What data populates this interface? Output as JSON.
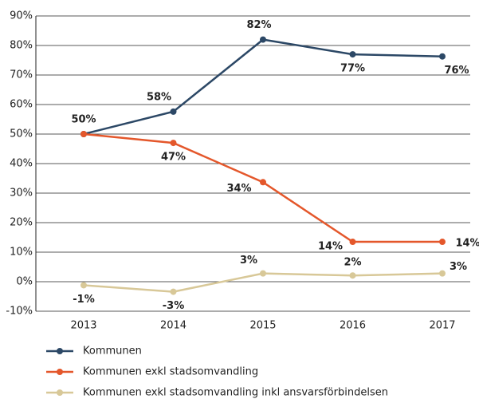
{
  "chart_data": {
    "type": "line",
    "categories": [
      "2013",
      "2014",
      "2015",
      "2016",
      "2017"
    ],
    "series": [
      {
        "name": "Kommunen",
        "color": "#2c4866",
        "values": [
          50,
          57.6,
          82,
          77,
          76.3
        ],
        "value_labels": [
          "50%",
          "58%",
          "82%",
          "77%",
          "76%"
        ]
      },
      {
        "name": "Kommunen exkl stadsomvandling",
        "color": "#e4572b",
        "values": [
          50,
          47,
          33.7,
          13.5,
          13.5
        ],
        "value_labels": [
          null,
          "47%",
          "34%",
          "14%",
          "14%"
        ]
      },
      {
        "name": "Kommunen exkl stadsomvandling inkl ansvarsförbindelsen",
        "color": "#d8c898",
        "values": [
          -1.2,
          -3.4,
          2.8,
          2.1,
          2.8
        ],
        "value_labels": [
          "-1%",
          "-3%",
          "3%",
          "2%",
          "3%"
        ]
      }
    ],
    "ylim": [
      -10,
      90
    ],
    "yticks": [
      {
        "value": -10,
        "label": "-10%"
      },
      {
        "value": 0,
        "label": "0%"
      },
      {
        "value": 10,
        "label": "10%"
      },
      {
        "value": 20,
        "label": "20%"
      },
      {
        "value": 30,
        "label": "30%"
      },
      {
        "value": 40,
        "label": "40%"
      },
      {
        "value": 50,
        "label": "50%"
      },
      {
        "value": 60,
        "label": "60%"
      },
      {
        "value": 70,
        "label": "70%"
      },
      {
        "value": 80,
        "label": "80%"
      },
      {
        "value": 90,
        "label": "90%"
      }
    ],
    "grid": true,
    "legend": "bottom"
  }
}
